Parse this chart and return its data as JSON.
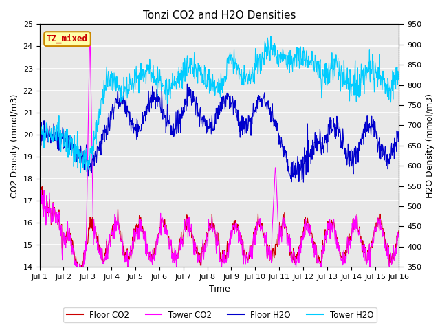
{
  "title": "Tonzi CO2 and H2O Densities",
  "xlabel": "Time",
  "ylabel_left": "CO2 Density (mmol/m3)",
  "ylabel_right": "H2O Density (mmol/m3)",
  "ylim_left": [
    14.0,
    25.0
  ],
  "ylim_right": [
    350,
    950
  ],
  "annotation_text": "TZ_mixed",
  "annotation_color": "#cc0000",
  "annotation_bg": "#ffffaa",
  "annotation_border": "#cc8800",
  "colors": {
    "floor_co2": "#cc0000",
    "tower_co2": "#ff00ff",
    "floor_h2o": "#0000cc",
    "tower_h2o": "#00ccff"
  },
  "legend_labels": [
    "Floor CO2",
    "Tower CO2",
    "Floor H2O",
    "Tower H2O"
  ],
  "xtick_labels": [
    "Jul 1",
    "Jul 2",
    "Jul 3",
    "Jul 4",
    "Jul 5",
    "Jul 6",
    "Jul 7",
    "Jul 8",
    "Jul 9",
    "Jul 10",
    "Jul 11",
    "Jul 12",
    "Jul 13",
    "Jul 14",
    "Jul 15",
    "Jul 16"
  ],
  "background_color": "#e8e8e8",
  "grid_color": "#ffffff",
  "n_points": 960,
  "seed": 42
}
